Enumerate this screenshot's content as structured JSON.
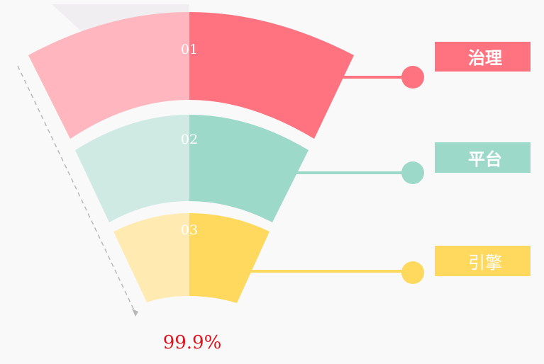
{
  "colors": {
    "background": "#f9f9f9",
    "backdrop": "#f0eef0",
    "dashed_line": "#b9b9b9",
    "footer_text": "#e0141e",
    "label_text": "#ffffff"
  },
  "segments": [
    {
      "number": "01",
      "label": "治理",
      "color": "#ff7280",
      "light_color": "#ffb6be"
    },
    {
      "number": "02",
      "label": "平台",
      "color": "#9dd9c8",
      "light_color": "#cfeae3"
    },
    {
      "number": "03",
      "label": "引擎",
      "color": "#ffd85e",
      "light_color": "#ffebb2"
    }
  ],
  "footer": {
    "value": "99.9%"
  }
}
